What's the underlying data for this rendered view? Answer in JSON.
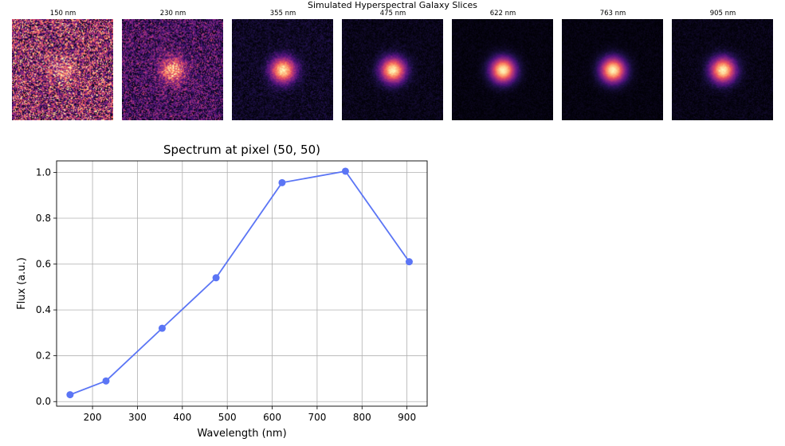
{
  "figure": {
    "suptitle": "Simulated Hyperspectral Galaxy Slices"
  },
  "slices": [
    {
      "label": "150 nm",
      "wavelength": 150,
      "core_strength": 0.15,
      "noise": 1.0
    },
    {
      "label": "230 nm",
      "wavelength": 230,
      "core_strength": 0.45,
      "noise": 0.8
    },
    {
      "label": "355 nm",
      "wavelength": 355,
      "core_strength": 1.0,
      "noise": 0.35
    },
    {
      "label": "475 nm",
      "wavelength": 475,
      "core_strength": 1.0,
      "noise": 0.22
    },
    {
      "label": "622 nm",
      "wavelength": 622,
      "core_strength": 1.0,
      "noise": 0.12
    },
    {
      "label": "763 nm",
      "wavelength": 763,
      "core_strength": 1.0,
      "noise": 0.12
    },
    {
      "label": "905 nm",
      "wavelength": 905,
      "core_strength": 1.0,
      "noise": 0.18
    }
  ],
  "colormap": "magma",
  "chart_data": {
    "type": "line",
    "title": "Spectrum at pixel (50, 50)",
    "xlabel": "Wavelength (nm)",
    "ylabel": "Flux (a.u.)",
    "x": [
      150,
      230,
      355,
      475,
      622,
      763,
      905
    ],
    "y": [
      0.03,
      0.09,
      0.32,
      0.54,
      0.955,
      1.005,
      0.61
    ],
    "xlim": [
      120,
      945
    ],
    "ylim": [
      -0.02,
      1.05
    ],
    "xticks": [
      200,
      300,
      400,
      500,
      600,
      700,
      800,
      900
    ],
    "yticks": [
      0.0,
      0.2,
      0.4,
      0.6,
      0.8,
      1.0
    ],
    "xtick_labels": [
      "200",
      "300",
      "400",
      "500",
      "600",
      "700",
      "800",
      "900"
    ],
    "ytick_labels": [
      "0.0",
      "0.2",
      "0.4",
      "0.6",
      "0.8",
      "1.0"
    ],
    "grid": true,
    "marker": "circle",
    "color": "#5b75f5"
  }
}
